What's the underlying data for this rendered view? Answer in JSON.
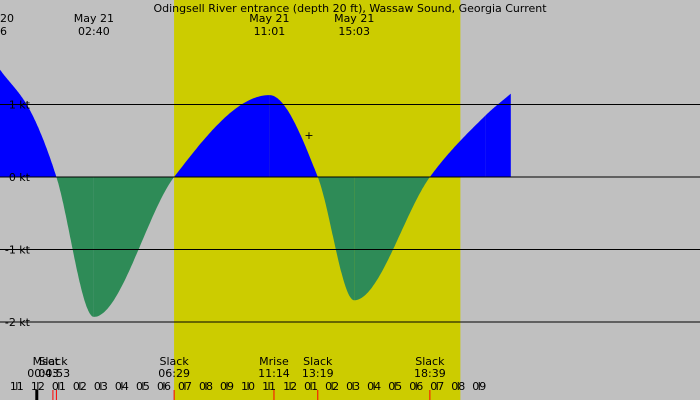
{
  "chart_data": {
    "type": "area",
    "title": "Odingsell River entrance (depth 20 ft), Wassaw Sound, Georgia Current",
    "xlabel": "",
    "ylabel": "",
    "x_unit": "hour",
    "xlim": [
      -1.8,
      31.5
    ],
    "ylim": [
      -2.4,
      2.4
    ],
    "y_ticks": [
      {
        "value": 1,
        "label": "1 kt"
      },
      {
        "value": 0,
        "label": "0 kt"
      },
      {
        "value": -1,
        "label": "-1 kt"
      },
      {
        "value": -2,
        "label": "-2 kt"
      }
    ],
    "x_ticks": [
      {
        "value": -1,
        "label": "11"
      },
      {
        "value": 0,
        "label": "12"
      },
      {
        "value": 1,
        "label": "01"
      },
      {
        "value": 2,
        "label": "02"
      },
      {
        "value": 3,
        "label": "03"
      },
      {
        "value": 4,
        "label": "04"
      },
      {
        "value": 5,
        "label": "05"
      },
      {
        "value": 6,
        "label": "06"
      },
      {
        "value": 7,
        "label": "07"
      },
      {
        "value": 8,
        "label": "08"
      },
      {
        "value": 9,
        "label": "09"
      },
      {
        "value": 10,
        "label": "10"
      },
      {
        "value": 11,
        "label": "11"
      },
      {
        "value": 12,
        "label": "12"
      },
      {
        "value": 13,
        "label": "01"
      },
      {
        "value": 14,
        "label": "02"
      },
      {
        "value": 15,
        "label": "03"
      },
      {
        "value": 16,
        "label": "04"
      },
      {
        "value": 17,
        "label": "05"
      },
      {
        "value": 18,
        "label": "06"
      },
      {
        "value": 19,
        "label": "07"
      },
      {
        "value": 20,
        "label": "08"
      },
      {
        "value": 21,
        "label": "09"
      }
    ],
    "daylight": [
      6.48,
      20.1
    ],
    "series": [
      {
        "x": [
          -1.8,
          -0.3,
          0.883,
          2.667,
          6.483,
          11.017,
          13.317,
          15.05,
          18.65,
          21.3,
          22.5
        ],
        "y": [
          1.48,
          0.88,
          0,
          -1.93,
          0,
          1.13,
          0,
          -1.7,
          0,
          0.85,
          1.15
        ]
      }
    ],
    "flood_color": "#0000ff",
    "ebb_color": "#2e8b57",
    "daylight_color": "#cccc00",
    "night_color": "#c0c0c0",
    "top_annotations": [
      {
        "x": -1.8,
        "date": "20",
        "time": "6"
      },
      {
        "x": 2.667,
        "date": "May 21",
        "time": "02:40"
      },
      {
        "x": 11.017,
        "date": "May 21",
        "time": "11:01"
      },
      {
        "x": 15.05,
        "date": "May 21",
        "time": "15:03"
      }
    ],
    "bottom_events": [
      {
        "x": 0.717,
        "label": "Mset",
        "time": "00:43"
      },
      {
        "x": 0.883,
        "label": "Slack",
        "time": "00:53"
      },
      {
        "x": 6.483,
        "label": "Slack",
        "time": "06:29"
      },
      {
        "x": 11.233,
        "label": "Mrise",
        "time": "11:14"
      },
      {
        "x": 13.317,
        "label": "Slack",
        "time": "13:19"
      },
      {
        "x": 18.65,
        "label": "Slack",
        "time": "18:39"
      }
    ],
    "minor_marks": [
      {
        "x": -0.05,
        "color": "#000000"
      },
      {
        "x": 0.717,
        "color": "#ff0000"
      },
      {
        "x": 0.883,
        "color": "#ff0000"
      },
      {
        "x": 6.483,
        "color": "#ff0000"
      },
      {
        "x": 11.233,
        "color": "#ff0000"
      },
      {
        "x": 13.317,
        "color": "#ff0000"
      },
      {
        "x": 18.65,
        "color": "#ff0000"
      }
    ],
    "current_marker": {
      "x": 12.9,
      "y": 0.58,
      "symbol": "+"
    }
  }
}
